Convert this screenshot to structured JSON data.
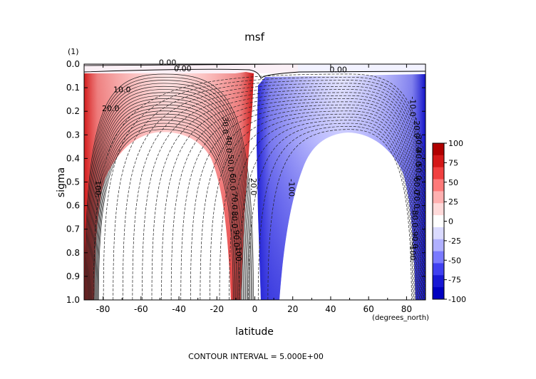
{
  "chart_data": {
    "type": "contour",
    "title": "msf",
    "xlabel": "latitude",
    "x_units": "(degrees_north)",
    "ylabel": "sigma",
    "y_units": "(1)",
    "xlim": [
      -90,
      90
    ],
    "ylim": [
      0.0,
      1.0
    ],
    "y_inverted": true,
    "x_ticks": [
      -80,
      -60,
      -40,
      -20,
      0,
      20,
      40,
      60,
      80
    ],
    "x_tick_labels": [
      "-80",
      "-60",
      "-40",
      "-20",
      "0",
      "20",
      "40",
      "60",
      "80"
    ],
    "y_ticks": [
      0.0,
      0.1,
      0.2,
      0.3,
      0.4,
      0.5,
      0.6,
      0.7,
      0.8,
      0.9,
      1.0
    ],
    "y_tick_labels": [
      "0.0",
      "0.1",
      "0.2",
      "0.3",
      "0.4",
      "0.5",
      "0.6",
      "0.7",
      "0.8",
      "0.9",
      "1.0"
    ],
    "footer": "CONTOUR INTERVAL = 5.000E+00",
    "contour_interval": 5,
    "field_range": [
      -100,
      100
    ],
    "cells": [
      {
        "name": "southern-hemisphere-cell",
        "sign": "positive",
        "center_lat": -48,
        "top_sigma": 0.29,
        "inner_lon_range": [
          -82,
          -12
        ],
        "max": 100
      },
      {
        "name": "northern-hemisphere-cell",
        "sign": "negative",
        "center_lat": 50,
        "top_sigma": 0.29,
        "inner_lon_range": [
          12,
          82
        ],
        "min": -100
      }
    ],
    "contour_labels": [
      {
        "text": "0.00",
        "lat": -46,
        "sigma": 0.005
      },
      {
        "text": "0.00",
        "lat": -38,
        "sigma": 0.03
      },
      {
        "text": "0.00",
        "lat": 44,
        "sigma": 0.035
      },
      {
        "text": "10.0",
        "lat": -70,
        "sigma": 0.12
      },
      {
        "text": "20.0",
        "lat": -76,
        "sigma": 0.2
      },
      {
        "text": "30.0",
        "lat": -17,
        "sigma": 0.26
      },
      {
        "text": "40.0",
        "lat": -15,
        "sigma": 0.34
      },
      {
        "text": "50.0",
        "lat": -14,
        "sigma": 0.42
      },
      {
        "text": "60.0",
        "lat": -13,
        "sigma": 0.5
      },
      {
        "text": "70.0",
        "lat": -12,
        "sigma": 0.58
      },
      {
        "text": "80.0",
        "lat": -12,
        "sigma": 0.66
      },
      {
        "text": "90.0",
        "lat": -11,
        "sigma": 0.74
      },
      {
        "text": "100.",
        "lat": -10,
        "sigma": 0.81
      },
      {
        "text": "20.0",
        "lat": -2,
        "sigma": 0.52
      },
      {
        "text": "-10.0",
        "lat": 82,
        "sigma": 0.18
      },
      {
        "text": "-20.0",
        "lat": 84,
        "sigma": 0.27
      },
      {
        "text": "-30.0",
        "lat": 85,
        "sigma": 0.33
      },
      {
        "text": "-40.0",
        "lat": 85,
        "sigma": 0.39
      },
      {
        "text": "-50.0",
        "lat": 85,
        "sigma": 0.45
      },
      {
        "text": "-60.0",
        "lat": 84,
        "sigma": 0.51
      },
      {
        "text": "-70.0",
        "lat": 84,
        "sigma": 0.57
      },
      {
        "text": "-80.0",
        "lat": 83,
        "sigma": 0.65
      },
      {
        "text": "-90.0",
        "lat": 83,
        "sigma": 0.74
      },
      {
        "text": "-100.",
        "lat": 82,
        "sigma": 0.8
      },
      {
        "text": "-100.",
        "lat": 18,
        "sigma": 0.53
      },
      {
        "text": "100.",
        "lat": -84,
        "sigma": 0.53
      }
    ],
    "colorbar": {
      "ticks": [
        100,
        75,
        50,
        25,
        0,
        -25,
        -50,
        -75,
        -100
      ],
      "tick_labels": [
        "100",
        "75",
        "50",
        "25",
        "0",
        "-25",
        "-50",
        "-75",
        "-100"
      ],
      "colors": [
        "#b00000",
        "#d41818",
        "#f04040",
        "#ff7a7a",
        "#ffb0b0",
        "#ffdada",
        "#ffffff",
        "#dadaff",
        "#b0b0ff",
        "#7a7aff",
        "#4040f0",
        "#1818d4",
        "#0000c0"
      ]
    }
  }
}
